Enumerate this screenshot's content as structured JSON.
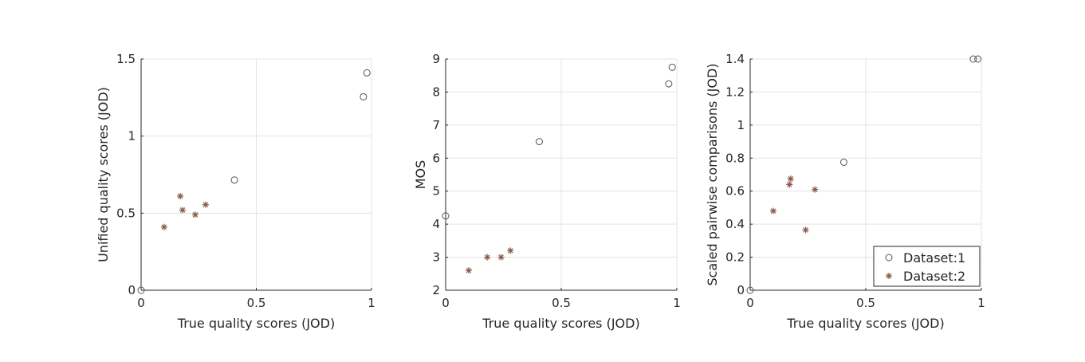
{
  "chart_data": [
    {
      "type": "scatter",
      "xlabel": "True quality scores (JOD)",
      "ylabel": "Unified quality scores (JOD)",
      "xlim": [
        0,
        1
      ],
      "ylim": [
        0,
        1.5
      ],
      "xticks": [
        0,
        0.5,
        1
      ],
      "xtick_labels": [
        "0",
        "0.5",
        "1"
      ],
      "yticks": [
        0,
        0.5,
        1,
        1.5
      ],
      "ytick_labels": [
        "0",
        "0.5",
        "1",
        "1.5"
      ],
      "grid": true,
      "series": [
        {
          "marker": "circle",
          "color": "#555555",
          "points": [
            [
              0,
              0
            ],
            [
              0.405,
              0.715
            ],
            [
              0.965,
              1.255
            ],
            [
              0.98,
              1.41
            ]
          ]
        },
        {
          "marker": "asterisk",
          "color": "#8c564b",
          "points": [
            [
              0.1,
              0.41
            ],
            [
              0.17,
              0.61
            ],
            [
              0.18,
              0.52
            ],
            [
              0.235,
              0.49
            ],
            [
              0.28,
              0.555
            ]
          ]
        }
      ]
    },
    {
      "type": "scatter",
      "xlabel": "True quality scores (JOD)",
      "ylabel": "MOS",
      "xlim": [
        0,
        1
      ],
      "ylim": [
        2,
        9
      ],
      "xticks": [
        0,
        0.5,
        1
      ],
      "xtick_labels": [
        "0",
        "0.5",
        "1"
      ],
      "yticks": [
        2,
        3,
        4,
        5,
        6,
        7,
        8,
        9
      ],
      "ytick_labels": [
        "2",
        "3",
        "4",
        "5",
        "6",
        "7",
        "8",
        "9"
      ],
      "grid": true,
      "series": [
        {
          "marker": "circle",
          "color": "#555555",
          "points": [
            [
              0,
              4.25
            ],
            [
              0.405,
              6.5
            ],
            [
              0.965,
              8.25
            ],
            [
              0.98,
              8.75
            ]
          ]
        },
        {
          "marker": "asterisk",
          "color": "#8c564b",
          "points": [
            [
              0.1,
              2.6
            ],
            [
              0.18,
              3.0
            ],
            [
              0.24,
              3.0
            ],
            [
              0.28,
              3.2
            ]
          ]
        }
      ]
    },
    {
      "type": "scatter",
      "xlabel": "True quality scores (JOD)",
      "ylabel": "Scaled pairwise comparisons (JOD)",
      "xlim": [
        0,
        1
      ],
      "ylim": [
        0,
        1.4
      ],
      "xticks": [
        0,
        0.5,
        1
      ],
      "xtick_labels": [
        "0",
        "0.5",
        "1"
      ],
      "yticks": [
        0,
        0.2,
        0.4,
        0.6,
        0.8,
        1,
        1.2,
        1.4
      ],
      "ytick_labels": [
        "0",
        "0.2",
        "0.4",
        "0.6",
        "0.8",
        "1",
        "1.2",
        "1.4"
      ],
      "grid": true,
      "legend": {
        "position": "bottom-right",
        "entries": [
          "Dataset:1",
          "Dataset:2"
        ]
      },
      "series": [
        {
          "name": "Dataset:1",
          "marker": "circle",
          "color": "#555555",
          "points": [
            [
              0,
              0
            ],
            [
              0.405,
              0.775
            ],
            [
              0.965,
              1.4
            ],
            [
              0.985,
              1.4
            ]
          ]
        },
        {
          "name": "Dataset:2",
          "marker": "asterisk",
          "color": "#8c564b",
          "points": [
            [
              0.1,
              0.48
            ],
            [
              0.17,
              0.64
            ],
            [
              0.175,
              0.675
            ],
            [
              0.24,
              0.365
            ],
            [
              0.28,
              0.61
            ]
          ]
        }
      ]
    }
  ]
}
